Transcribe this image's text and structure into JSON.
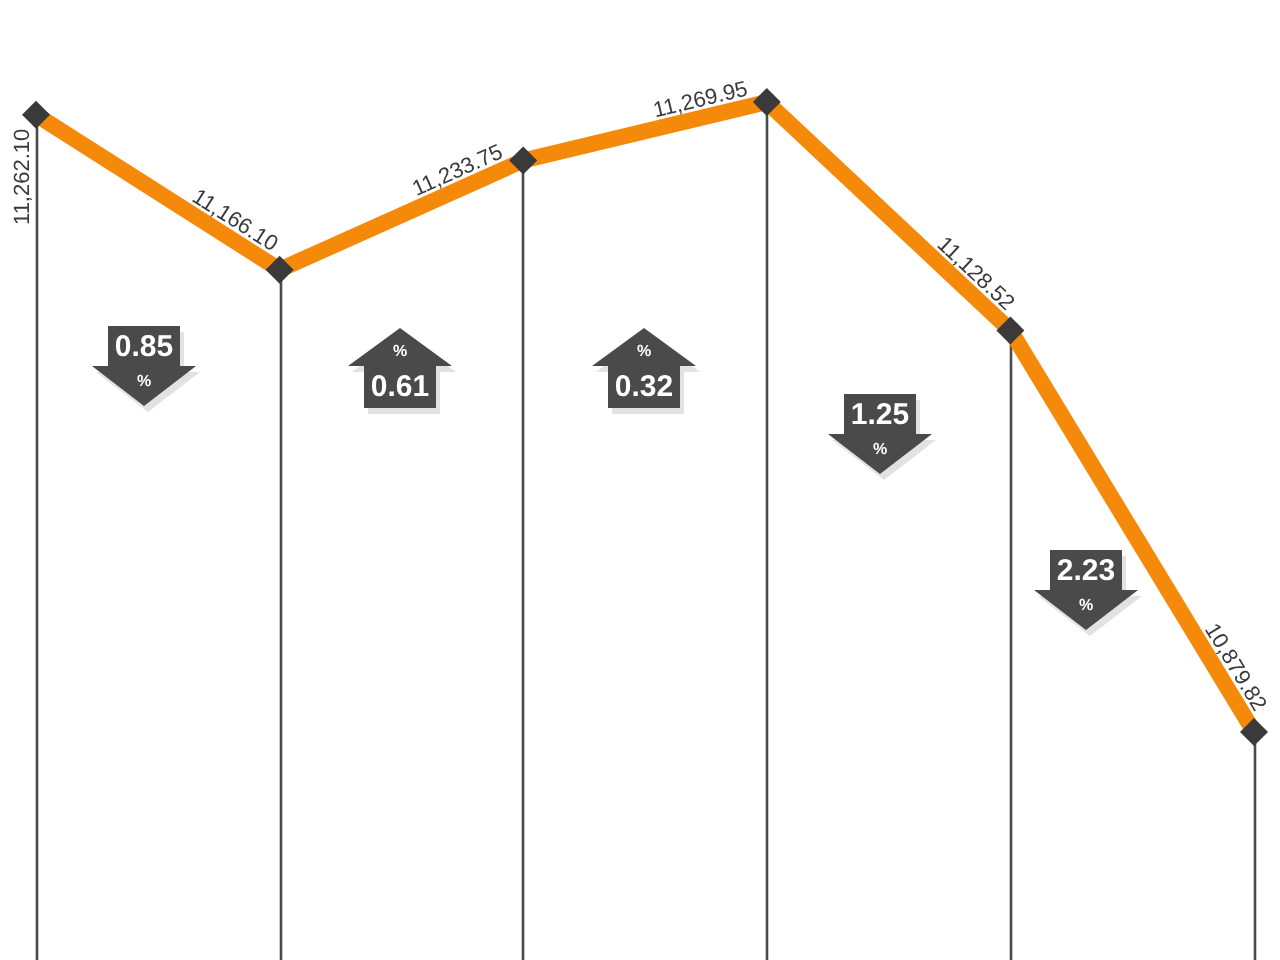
{
  "chart_data": {
    "type": "line",
    "categories": [
      null,
      null,
      null,
      null,
      null,
      null
    ],
    "series": [
      {
        "color": "#f5890a",
        "values": [
          11262.1,
          11166.1,
          11233.75,
          11269.95,
          11128.52,
          10879.82
        ],
        "value_labels": [
          "11,262.10",
          "11,166.10",
          "11,233.75",
          "11,269.95",
          "11,128.52",
          "10,879.82"
        ]
      }
    ],
    "marker": "diamond",
    "grid": "x",
    "tick_labels": false,
    "annotations": [
      "0.85\n%",
      "%\n0.61",
      "%\n0.32",
      "1.25\n%",
      "2.23\n%"
    ]
  }
}
